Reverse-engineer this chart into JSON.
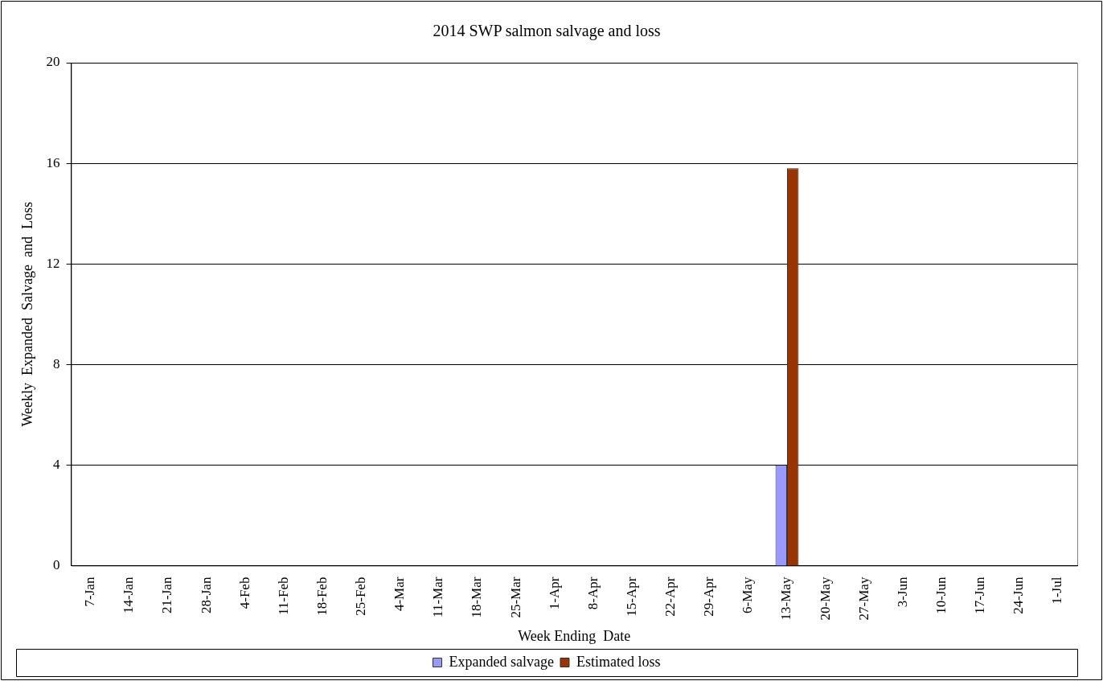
{
  "chart_data": {
    "type": "bar",
    "title": "2014 SWP salmon salvage and loss",
    "xlabel": "Week Ending  Date",
    "ylabel": "Weekly  Expanded  Salvage  and  Loss",
    "categories": [
      "7-Jan",
      "14-Jan",
      "21-Jan",
      "28-Jan",
      "4-Feb",
      "11-Feb",
      "18-Feb",
      "25-Feb",
      "4-Mar",
      "11-Mar",
      "18-Mar",
      "25-Mar",
      "1-Apr",
      "8-Apr",
      "15-Apr",
      "22-Apr",
      "29-Apr",
      "6-May",
      "13-May",
      "20-May",
      "27-May",
      "3-Jun",
      "10-Jun",
      "17-Jun",
      "24-Jun",
      "1-Jul"
    ],
    "series": [
      {
        "name": "Expanded salvage",
        "color": "#9999ff",
        "values": [
          0,
          0,
          0,
          0,
          0,
          0,
          0,
          0,
          0,
          0,
          0,
          0,
          0,
          0,
          0,
          0,
          0,
          0,
          4,
          0,
          0,
          0,
          0,
          0,
          0,
          0
        ]
      },
      {
        "name": "Estimated loss",
        "color": "#993300",
        "values": [
          0,
          0,
          0,
          0,
          0,
          0,
          0,
          0,
          0,
          0,
          0,
          0,
          0,
          0,
          0,
          0,
          0,
          0,
          15.8,
          0,
          0,
          0,
          0,
          0,
          0,
          0
        ]
      }
    ],
    "ylim": [
      0,
      20
    ],
    "yticks": [
      0,
      4,
      8,
      12,
      16,
      20
    ],
    "grid": "y",
    "legend": "bottom"
  }
}
